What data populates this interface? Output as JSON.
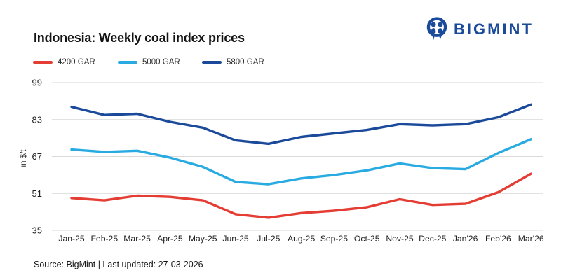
{
  "logo": {
    "text": "BIGMINT",
    "brand_color": "#1b4a9b"
  },
  "header": {
    "title": "Indonesia: Weekly coal index prices"
  },
  "chart_data": {
    "type": "line",
    "title": "Indonesia: Weekly coal index prices",
    "ylabel": "in $/t",
    "xlabel": "",
    "ylim": [
      35,
      99
    ],
    "yticks": [
      99,
      83,
      67,
      51,
      35
    ],
    "grid": "horizontal",
    "legend_position": "top-left",
    "categories": [
      "Jan-25",
      "Feb-25",
      "Mar-25",
      "Apr-25",
      "May-25",
      "Jun-25",
      "Jul-25",
      "Aug-25",
      "Sep-25",
      "Oct-25",
      "Nov-25",
      "Dec-25",
      "Jan'26",
      "Feb'26",
      "Mar'26"
    ],
    "series": [
      {
        "name": "4200 GAR",
        "color": "#e43d33",
        "values": [
          49,
          48,
          50,
          49.5,
          48,
          42,
          40.5,
          42.5,
          43.5,
          45,
          48.5,
          46,
          46.5,
          51.5,
          59.5
        ]
      },
      {
        "name": "5000 GAR",
        "color": "#29abe2",
        "values": [
          70,
          69,
          69.5,
          66.5,
          62.5,
          56,
          55,
          57.5,
          59,
          61,
          64,
          62,
          61.5,
          68.5,
          74.5
        ]
      },
      {
        "name": "5800 GAR",
        "color": "#1b4a9b",
        "values": [
          88.5,
          85,
          85.5,
          82,
          79.5,
          74,
          72.5,
          75.5,
          77,
          78.5,
          81,
          80.5,
          81,
          84,
          89.5
        ]
      }
    ],
    "gridline_color": "#d9d9d9",
    "tick_label_color": "#222222"
  },
  "footer": {
    "text": "Source: BigMint | Last updated: 27-03-2026"
  }
}
